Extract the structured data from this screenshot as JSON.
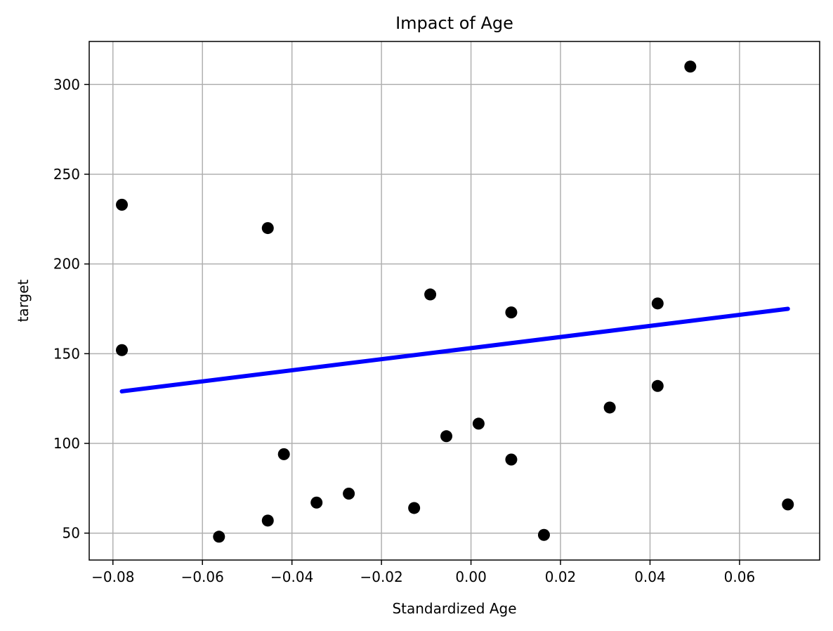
{
  "chart_data": {
    "type": "scatter",
    "title": "Impact of Age",
    "xlabel": "Standardized Age",
    "ylabel": "target",
    "xlim": [
      -0.0853,
      0.0779
    ],
    "ylim": [
      35,
      324
    ],
    "grid": true,
    "x_ticks": [
      -0.08,
      -0.06,
      -0.04,
      -0.02,
      0.0,
      0.02,
      0.04,
      0.06
    ],
    "x_tick_labels": [
      "−0.08",
      "−0.06",
      "−0.04",
      "−0.02",
      "0.00",
      "0.02",
      "0.04",
      "0.06"
    ],
    "y_ticks": [
      50,
      100,
      150,
      200,
      250,
      300
    ],
    "y_tick_labels": [
      "50",
      "100",
      "150",
      "200",
      "250",
      "300"
    ],
    "colors": {
      "points": "#000000",
      "regression_line": "#0000ff",
      "grid": "#b0b0b0",
      "axes": "#000000"
    },
    "series": [
      {
        "kind": "scatter",
        "points": [
          {
            "x": -0.078,
            "y": 233
          },
          {
            "x": -0.078,
            "y": 152
          },
          {
            "x": -0.0454,
            "y": 220
          },
          {
            "x": -0.0418,
            "y": 94
          },
          {
            "x": -0.0563,
            "y": 48
          },
          {
            "x": -0.0454,
            "y": 57
          },
          {
            "x": -0.0345,
            "y": 67
          },
          {
            "x": -0.0273,
            "y": 72
          },
          {
            "x": -0.0127,
            "y": 64
          },
          {
            "x": -0.0091,
            "y": 183
          },
          {
            "x": -0.0055,
            "y": 104
          },
          {
            "x": 0.0017,
            "y": 111
          },
          {
            "x": 0.009,
            "y": 173
          },
          {
            "x": 0.009,
            "y": 91
          },
          {
            "x": 0.0163,
            "y": 49
          },
          {
            "x": 0.031,
            "y": 120
          },
          {
            "x": 0.0417,
            "y": 178
          },
          {
            "x": 0.0417,
            "y": 132
          },
          {
            "x": 0.049,
            "y": 310
          },
          {
            "x": 0.0708,
            "y": 66
          }
        ]
      },
      {
        "kind": "line",
        "points": [
          {
            "x": -0.078,
            "y": 129
          },
          {
            "x": 0.0708,
            "y": 175
          }
        ]
      }
    ]
  }
}
